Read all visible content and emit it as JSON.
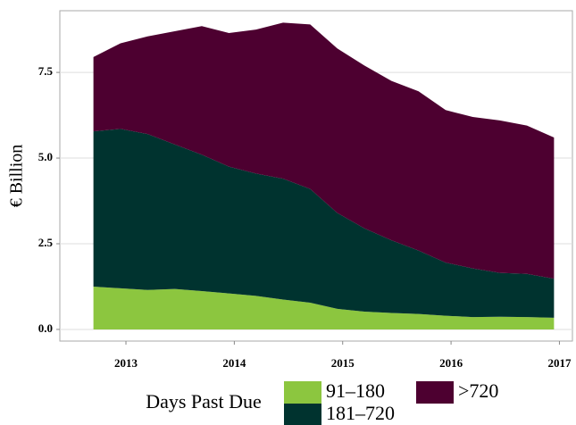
{
  "chart_data": {
    "type": "stacked_area",
    "y_label": "€ Billion",
    "legend_title": "Days Past Due",
    "x": [
      2012.7,
      2012.95,
      2013.2,
      2013.45,
      2013.7,
      2013.95,
      2014.2,
      2014.45,
      2014.7,
      2014.95,
      2015.2,
      2015.45,
      2015.7,
      2015.95,
      2016.2,
      2016.45,
      2016.7,
      2016.95
    ],
    "series": [
      {
        "name": "91–180",
        "color": "#8cc63f",
        "values": [
          1.25,
          1.2,
          1.15,
          1.18,
          1.12,
          1.05,
          0.98,
          0.87,
          0.78,
          0.6,
          0.52,
          0.48,
          0.45,
          0.4,
          0.36,
          0.37,
          0.36,
          0.34
        ]
      },
      {
        "name": "181–720",
        "color": "#00332f",
        "values": [
          4.53,
          4.65,
          4.55,
          4.22,
          3.98,
          3.7,
          3.57,
          3.53,
          3.32,
          2.8,
          2.43,
          2.12,
          1.85,
          1.55,
          1.42,
          1.28,
          1.26,
          1.14
        ]
      },
      {
        "name": ">720",
        "color": "#4d0030",
        "values": [
          2.17,
          2.5,
          2.85,
          3.3,
          3.75,
          3.9,
          4.2,
          4.55,
          4.8,
          4.8,
          4.75,
          4.65,
          4.65,
          4.45,
          4.42,
          4.45,
          4.33,
          4.12
        ]
      }
    ],
    "xlim": [
      2012.39,
      2017.12
    ],
    "xticks": [
      2013,
      2014,
      2015,
      2016,
      2017
    ],
    "ylim": [
      -0.34,
      9.3
    ],
    "yticks": [
      {
        "value": 0,
        "label": "0.0"
      },
      2.5,
      {
        "value": 5,
        "label": "5.0"
      },
      7.5
    ],
    "grid": true
  }
}
